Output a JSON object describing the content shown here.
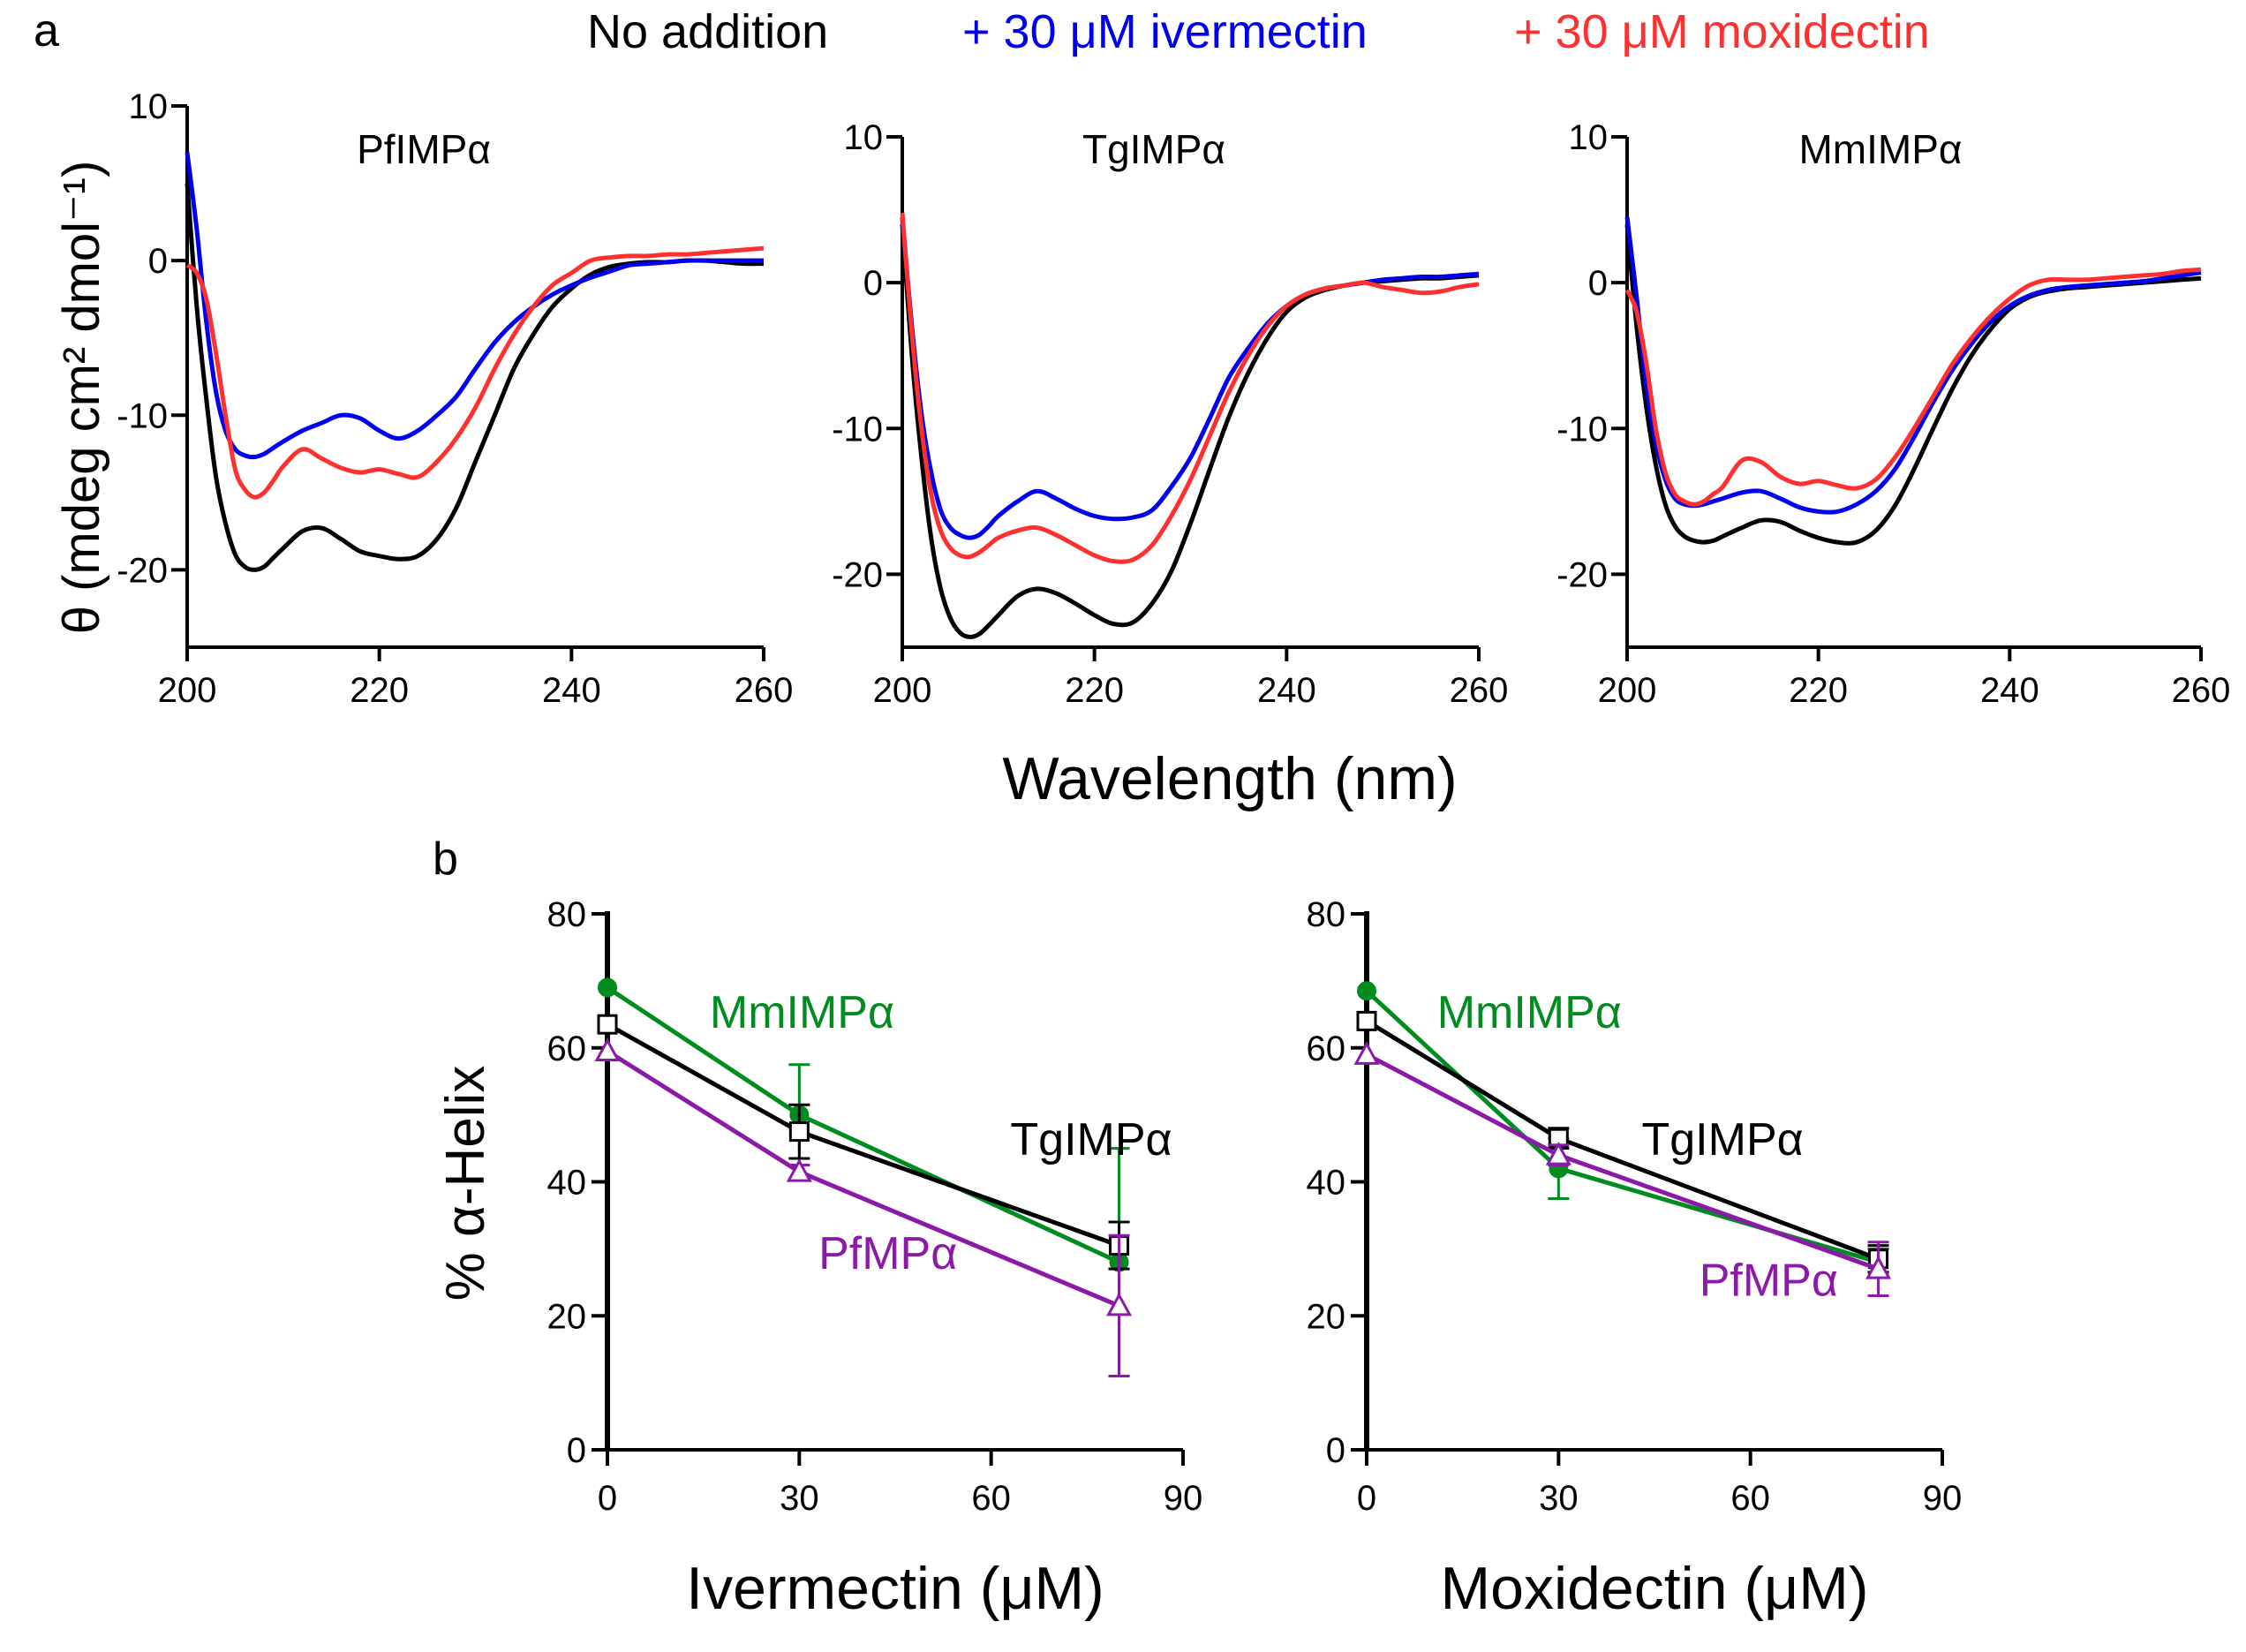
{
  "figure": {
    "panel_a_label": "a",
    "panel_b_label": "b",
    "legend": [
      {
        "label": "No addition",
        "color": "#000000"
      },
      {
        "label": "+ 30 μM  ivermectin",
        "color": "#0000ee"
      },
      {
        "label": "+ 30 μM  moxidectin",
        "color": "#ff3030"
      }
    ],
    "shared_xlabel_a": "Wavelength (nm)",
    "ylabel_a": "θ (mdeg cm² dmol⁻¹)",
    "ylabel_b": "% α-Helix"
  },
  "chart_data": [
    {
      "type": "line",
      "title": "PfIMPα",
      "xlabel": "Wavelength (nm)",
      "ylabel": "θ (mdeg cm² dmol⁻¹)",
      "xlim": [
        200,
        260
      ],
      "ylim": [
        -25,
        10
      ],
      "xticks": [
        "200",
        "220",
        "240",
        "260"
      ],
      "yticks": [
        "10",
        "0",
        "-10",
        "-20"
      ],
      "x": [
        200,
        201,
        202,
        203,
        204,
        205,
        206,
        207,
        208,
        209,
        210,
        212,
        214,
        216,
        218,
        220,
        222,
        224,
        226,
        228,
        230,
        232,
        234,
        236,
        238,
        240,
        242,
        244,
        246,
        248,
        250,
        252,
        254,
        256,
        258,
        260
      ],
      "series": [
        {
          "name": "No addition",
          "color": "#000000",
          "values": [
            5,
            -3,
            -9,
            -14,
            -17,
            -19,
            -19.8,
            -20,
            -19.8,
            -19.2,
            -18.6,
            -17.5,
            -17.3,
            -18,
            -18.8,
            -19.1,
            -19.3,
            -19.1,
            -18,
            -16,
            -13,
            -10,
            -7,
            -4.8,
            -3,
            -1.8,
            -0.9,
            -0.4,
            -0.2,
            -0.1,
            -0.1,
            0,
            0,
            -0.1,
            -0.2,
            -0.2
          ]
        },
        {
          "name": "+ 30 μM  ivermectin",
          "color": "#0000ee",
          "values": [
            7,
            2,
            -4,
            -8.5,
            -11,
            -12.2,
            -12.6,
            -12.7,
            -12.5,
            -12.1,
            -11.7,
            -11,
            -10.5,
            -10,
            -10.2,
            -11,
            -11.5,
            -11,
            -10,
            -8.8,
            -7,
            -5.3,
            -4,
            -3,
            -2.2,
            -1.6,
            -1.1,
            -0.7,
            -0.3,
            -0.2,
            -0.1,
            0,
            0,
            0,
            0,
            0
          ]
        },
        {
          "name": "+ 30 μM  moxidectin",
          "color": "#ff3030",
          "values": [
            -0.3,
            -0.8,
            -2.5,
            -6,
            -10,
            -13.5,
            -14.8,
            -15.3,
            -15,
            -14.2,
            -13.3,
            -12.2,
            -12.8,
            -13.4,
            -13.7,
            -13.5,
            -13.8,
            -14,
            -13,
            -11.5,
            -9.5,
            -7,
            -4.8,
            -3,
            -1.6,
            -0.8,
            0,
            0.2,
            0.3,
            0.3,
            0.4,
            0.4,
            0.5,
            0.6,
            0.7,
            0.8
          ]
        }
      ]
    },
    {
      "type": "line",
      "title": "TgIMPα",
      "xlabel": "Wavelength (nm)",
      "ylabel": "",
      "xlim": [
        200,
        260
      ],
      "ylim": [
        -25,
        10
      ],
      "xticks": [
        "200",
        "220",
        "240",
        "260"
      ],
      "yticks": [
        "10",
        "0",
        "-10",
        "-20"
      ],
      "x": [
        200,
        201,
        202,
        203,
        204,
        205,
        206,
        207,
        208,
        209,
        210,
        212,
        214,
        216,
        218,
        220,
        222,
        224,
        226,
        228,
        230,
        232,
        234,
        236,
        238,
        240,
        242,
        244,
        246,
        248,
        250,
        252,
        254,
        256,
        258,
        260
      ],
      "series": [
        {
          "name": "No addition",
          "color": "#000000",
          "values": [
            4,
            -5,
            -12,
            -17.5,
            -21,
            -23,
            -24,
            -24.3,
            -24.1,
            -23.5,
            -22.8,
            -21.5,
            -21,
            -21.3,
            -22,
            -22.8,
            -23.4,
            -23.3,
            -22,
            -19.8,
            -16.5,
            -12.8,
            -9.2,
            -6.2,
            -3.8,
            -2,
            -1,
            -0.5,
            -0.2,
            0,
            0.1,
            0.2,
            0.3,
            0.3,
            0.4,
            0.5
          ]
        },
        {
          "name": "+ 30 μM  ivermectin",
          "color": "#0000ee",
          "values": [
            4.5,
            -3,
            -9,
            -13,
            -15.6,
            -16.8,
            -17.3,
            -17.5,
            -17.3,
            -16.7,
            -16,
            -15,
            -14.3,
            -14.8,
            -15.5,
            -16,
            -16.2,
            -16.1,
            -15.6,
            -14,
            -12,
            -9.3,
            -6.5,
            -4.5,
            -2.8,
            -1.6,
            -0.8,
            -0.4,
            -0.2,
            0,
            0.2,
            0.3,
            0.4,
            0.4,
            0.5,
            0.6
          ]
        },
        {
          "name": "+ 30 μM  moxidectin",
          "color": "#ff3030",
          "values": [
            4.8,
            -3.5,
            -10,
            -14.5,
            -17,
            -18.2,
            -18.7,
            -18.8,
            -18.5,
            -18,
            -17.5,
            -17,
            -16.8,
            -17.3,
            -18,
            -18.7,
            -19.1,
            -19,
            -18,
            -16,
            -13.5,
            -10.5,
            -7.5,
            -5,
            -3,
            -1.6,
            -0.8,
            -0.4,
            -0.2,
            0,
            -0.3,
            -0.5,
            -0.7,
            -0.6,
            -0.3,
            -0.1
          ]
        }
      ]
    },
    {
      "type": "line",
      "title": "MmIMPα",
      "xlabel": "Wavelength (nm)",
      "ylabel": "",
      "xlim": [
        200,
        260
      ],
      "ylim": [
        -25,
        10
      ],
      "xticks": [
        "200",
        "220",
        "240",
        "260"
      ],
      "yticks": [
        "10",
        "0",
        "-10",
        "-20"
      ],
      "x": [
        200,
        201,
        202,
        203,
        204,
        205,
        206,
        207,
        208,
        209,
        210,
        212,
        214,
        216,
        218,
        220,
        222,
        224,
        226,
        228,
        230,
        232,
        234,
        236,
        238,
        240,
        242,
        244,
        246,
        248,
        250,
        252,
        254,
        256,
        258,
        260
      ],
      "series": [
        {
          "name": "No addition",
          "color": "#000000",
          "values": [
            4,
            -3,
            -8.5,
            -12.5,
            -15.2,
            -16.7,
            -17.4,
            -17.7,
            -17.8,
            -17.7,
            -17.4,
            -16.8,
            -16.3,
            -16.4,
            -17,
            -17.5,
            -17.8,
            -17.8,
            -17,
            -15.3,
            -12.8,
            -10,
            -7.3,
            -5,
            -3.2,
            -1.8,
            -1,
            -0.6,
            -0.4,
            -0.3,
            -0.2,
            -0.1,
            0,
            0.1,
            0.2,
            0.3
          ]
        },
        {
          "name": "+ 30 μM  ivermectin",
          "color": "#0000ee",
          "values": [
            4.5,
            -1,
            -7,
            -11,
            -13.5,
            -14.8,
            -15.2,
            -15.3,
            -15.2,
            -15,
            -14.8,
            -14.4,
            -14.3,
            -14.8,
            -15.4,
            -15.7,
            -15.7,
            -15.2,
            -14.3,
            -12.8,
            -10.6,
            -8.2,
            -6,
            -4.2,
            -2.7,
            -1.6,
            -0.9,
            -0.5,
            -0.3,
            -0.2,
            -0.1,
            0,
            0.1,
            0.3,
            0.5,
            0.7
          ]
        },
        {
          "name": "+ 30 μM  moxidectin",
          "color": "#ff3030",
          "values": [
            -0.5,
            -2,
            -5.5,
            -10,
            -13,
            -14.5,
            -15,
            -15.2,
            -15,
            -14.5,
            -14,
            -12.2,
            -12.3,
            -13.3,
            -13.8,
            -13.6,
            -13.9,
            -14.1,
            -13.5,
            -12,
            -10,
            -7.8,
            -5.6,
            -3.8,
            -2.3,
            -1.1,
            -0.2,
            0.2,
            0.2,
            0.2,
            0.3,
            0.4,
            0.5,
            0.6,
            0.8,
            0.9
          ]
        }
      ]
    },
    {
      "type": "line",
      "title": "",
      "xlabel": "Ivermectin (μM)",
      "ylabel": "% α-Helix",
      "xlim": [
        0,
        90
      ],
      "ylim": [
        0,
        80
      ],
      "xticks": [
        "0",
        "30",
        "60",
        "90"
      ],
      "yticks": [
        "80",
        "60",
        "40",
        "20",
        "0"
      ],
      "x": [
        0,
        30,
        80
      ],
      "series": [
        {
          "name": "MmIMPα",
          "color": "#008c1e",
          "marker": "circle",
          "values": [
            69,
            50,
            28
          ],
          "errors": [
            0,
            7.5,
            17
          ],
          "label_pos": {
            "x": 16,
            "y": 63
          }
        },
        {
          "name": "TgIMPα",
          "color": "#000000",
          "marker": "square",
          "values": [
            63.5,
            47.5,
            30.5
          ],
          "errors": [
            0,
            4,
            3.5
          ],
          "label_pos": {
            "x": 63,
            "y": 44
          }
        },
        {
          "name": "PfMPα",
          "color": "#8c1aa8",
          "marker": "triangle",
          "values": [
            59.5,
            41.5,
            21.5
          ],
          "errors": [
            0,
            1,
            10.5
          ],
          "label_pos": {
            "x": 33,
            "y": 27
          }
        }
      ]
    },
    {
      "type": "line",
      "title": "",
      "xlabel": "Moxidectin (μM)",
      "ylabel": "",
      "xlim": [
        0,
        90
      ],
      "ylim": [
        0,
        80
      ],
      "xticks": [
        "0",
        "30",
        "60",
        "90"
      ],
      "yticks": [
        "80",
        "60",
        "40",
        "20",
        "0"
      ],
      "x": [
        0,
        30,
        80
      ],
      "series": [
        {
          "name": "MmIMPα",
          "color": "#008c1e",
          "marker": "circle",
          "values": [
            68.5,
            42,
            28
          ],
          "errors": [
            0,
            4.5,
            2
          ],
          "label_pos": {
            "x": 11,
            "y": 63
          }
        },
        {
          "name": "TgIMPα",
          "color": "#000000",
          "marker": "square",
          "values": [
            64,
            46.5,
            28.5
          ],
          "errors": [
            0,
            1.5,
            2
          ],
          "label_pos": {
            "x": 43,
            "y": 44
          }
        },
        {
          "name": "PfMPα",
          "color": "#8c1aa8",
          "marker": "triangle",
          "values": [
            59,
            44,
            27
          ],
          "errors": [
            0,
            1.5,
            4
          ],
          "label_pos": {
            "x": 52,
            "y": 23
          }
        }
      ]
    }
  ]
}
